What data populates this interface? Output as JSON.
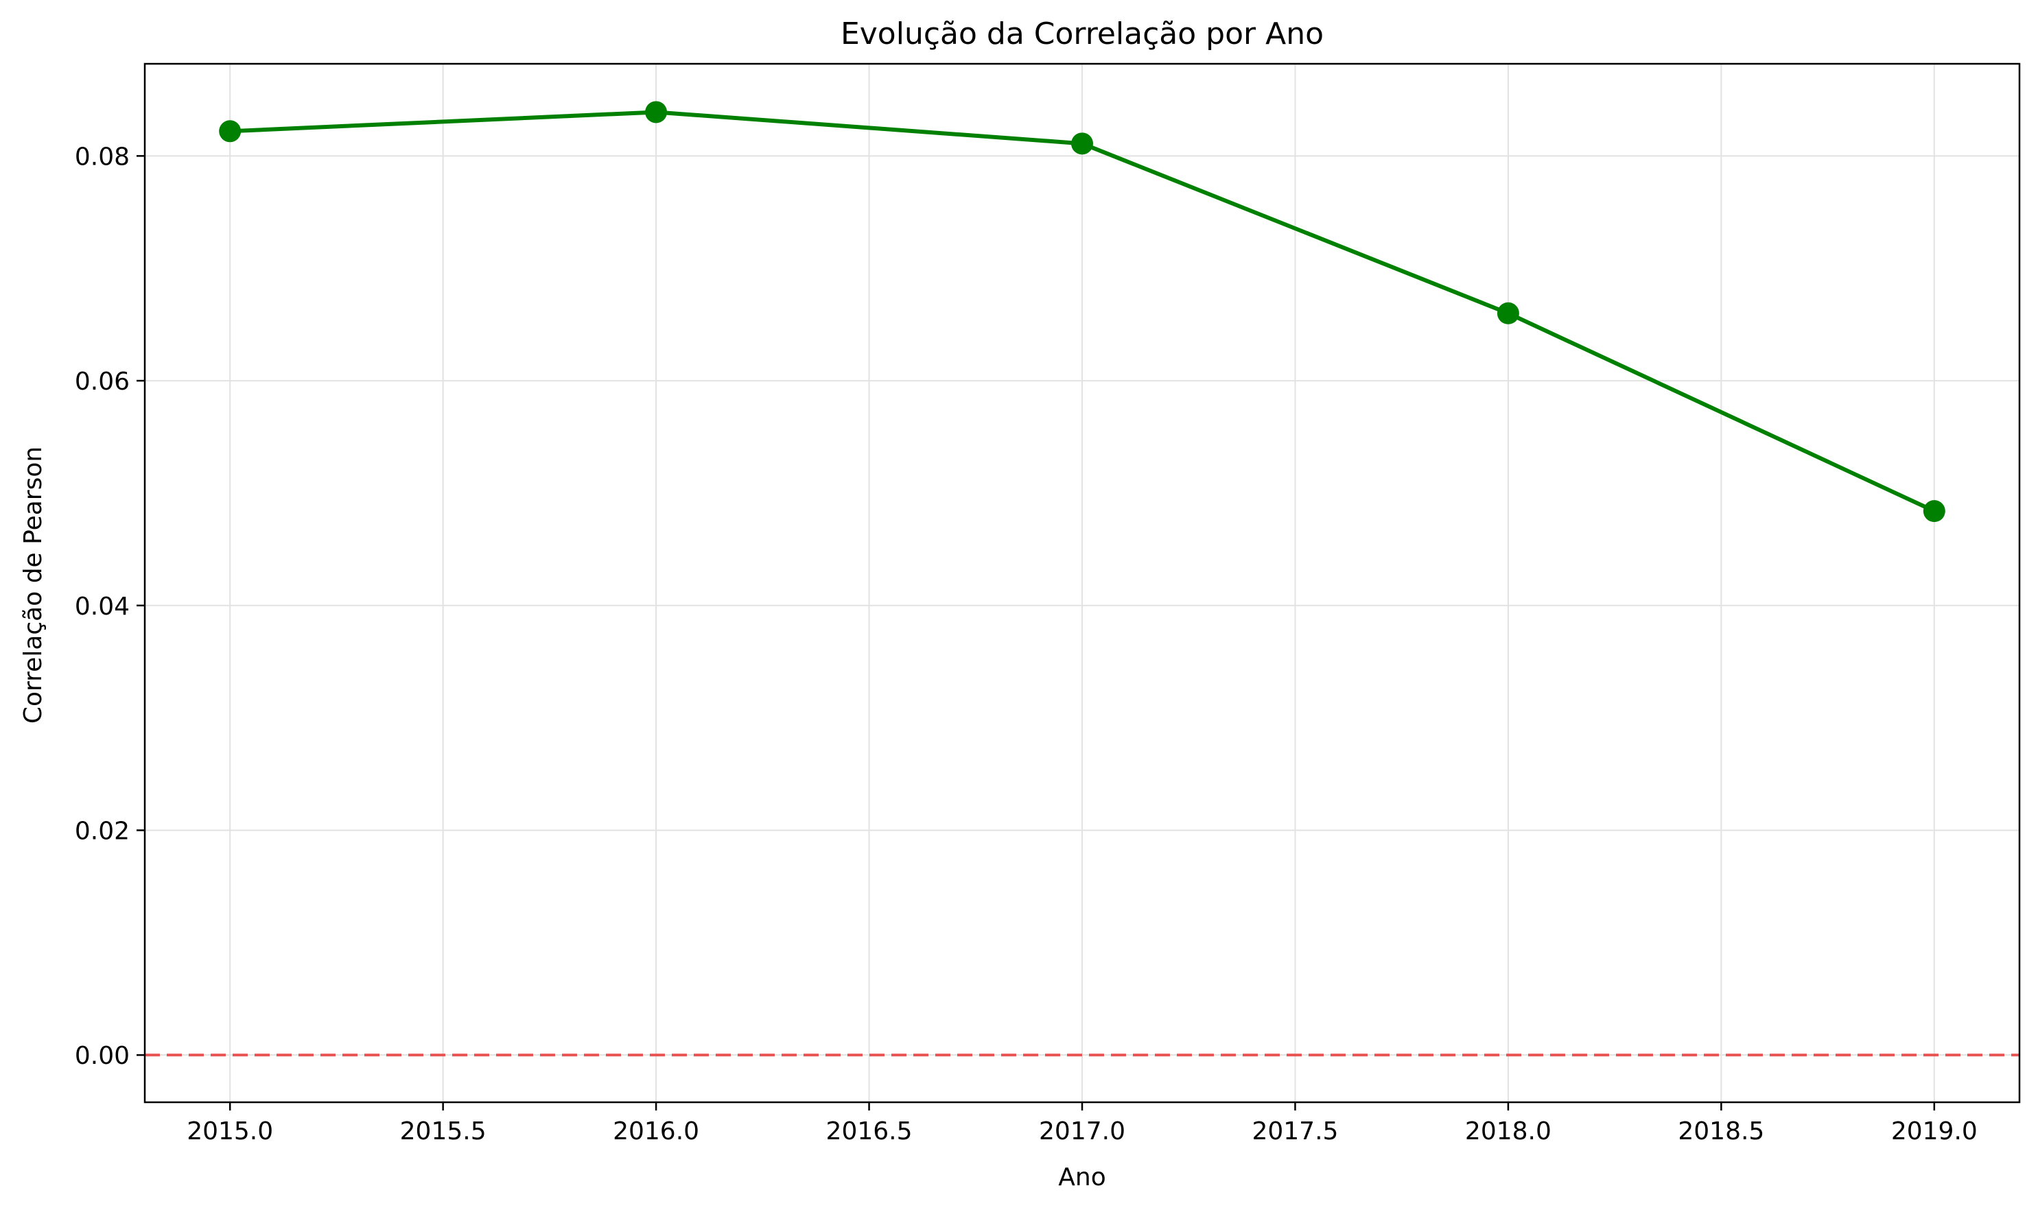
{
  "chart_data": {
    "type": "line",
    "title": "Evolução da Correlação por Ano",
    "xlabel": "Ano",
    "ylabel": "Correlação de Pearson",
    "xlim": [
      2014.8,
      2019.2
    ],
    "ylim": [
      -0.0042,
      0.0882
    ],
    "xticks": [
      2015.0,
      2015.5,
      2016.0,
      2016.5,
      2017.0,
      2017.5,
      2018.0,
      2018.5,
      2019.0
    ],
    "xtick_labels": [
      "2015.0",
      "2015.5",
      "2016.0",
      "2016.5",
      "2017.0",
      "2017.5",
      "2018.0",
      "2018.5",
      "2019.0"
    ],
    "yticks": [
      0.0,
      0.02,
      0.04,
      0.06,
      0.08
    ],
    "ytick_labels": [
      "0.00",
      "0.02",
      "0.04",
      "0.06",
      "0.08"
    ],
    "grid": true,
    "series": [
      {
        "x": [
          2015,
          2016,
          2017,
          2018,
          2019
        ],
        "y": [
          0.0822,
          0.0839,
          0.0811,
          0.066,
          0.0484
        ],
        "color": "#008000",
        "marker": "circle"
      }
    ],
    "reference_line": {
      "y": 0.0,
      "color": "#e83c3c",
      "style": "dashed"
    }
  }
}
